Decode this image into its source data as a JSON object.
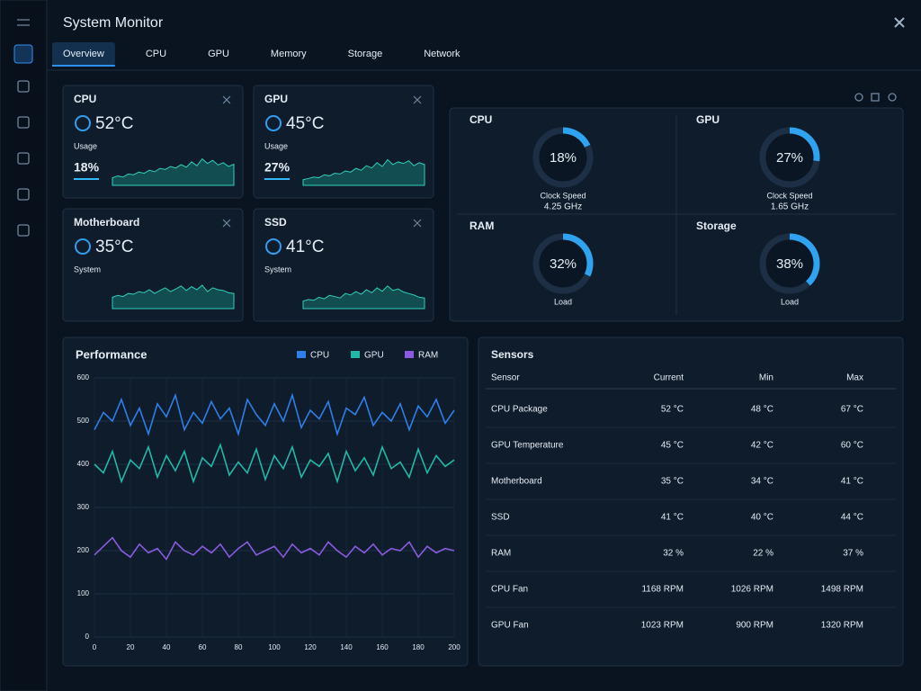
{
  "header": {
    "title": "System Monitor",
    "tabs": [
      "Overview",
      "CPU",
      "GPU",
      "Memory",
      "Storage",
      "Network"
    ],
    "active_tab": 0
  },
  "cards": [
    {
      "name": "CPU",
      "temperature": "52°C",
      "metric": "Usage",
      "reading": "18%",
      "history": [
        20,
        25,
        22,
        30,
        28,
        35,
        32,
        40,
        36,
        45,
        42,
        50,
        46,
        55,
        48,
        62,
        52,
        70,
        58,
        66,
        54,
        60,
        50,
        56
      ]
    },
    {
      "name": "GPU",
      "temperature": "45°C",
      "metric": "Usage",
      "reading": "27%",
      "history": [
        15,
        18,
        22,
        20,
        28,
        25,
        32,
        30,
        38,
        35,
        45,
        40,
        52,
        46,
        60,
        50,
        68,
        55,
        62,
        58,
        65,
        52,
        60,
        55
      ]
    },
    {
      "name": "Motherboard",
      "temperature": "35°C",
      "metric": "System",
      "history": [
        30,
        35,
        32,
        40,
        38,
        45,
        42,
        50,
        40,
        48,
        55,
        45,
        52,
        60,
        48,
        58,
        50,
        62,
        45,
        55,
        50,
        48,
        42,
        40
      ]
    },
    {
      "name": "SSD",
      "temperature": "41°C",
      "metric": "System",
      "history": [
        20,
        24,
        22,
        30,
        26,
        35,
        32,
        28,
        40,
        36,
        45,
        38,
        50,
        42,
        55,
        46,
        60,
        48,
        52,
        44,
        40,
        36,
        30,
        28
      ]
    }
  ],
  "gauges": [
    {
      "name": "CPU",
      "value": 18,
      "value_label": "18%",
      "caption": "Clock Speed",
      "detail": "4.25 GHz"
    },
    {
      "name": "GPU",
      "value": 27,
      "value_label": "27%",
      "caption": "Clock Speed",
      "detail": "1.65 GHz"
    },
    {
      "name": "RAM",
      "value": 32,
      "value_label": "32%",
      "caption": "Load"
    },
    {
      "name": "Storage",
      "value": 38,
      "value_label": "38%",
      "caption": "Load"
    }
  ],
  "chart_data": {
    "type": "line",
    "title": "Performance",
    "x": [
      0,
      5,
      10,
      15,
      20,
      25,
      30,
      35,
      40,
      45,
      50,
      55,
      60,
      65,
      70,
      75,
      80,
      85,
      90,
      95,
      100,
      105,
      110,
      115,
      120,
      125,
      130,
      135,
      140,
      145,
      150,
      155,
      160,
      165,
      170,
      175,
      180,
      185,
      190,
      195,
      200
    ],
    "series": [
      {
        "name": "CPU",
        "color": "#2f7fe8",
        "values": [
          480,
          520,
          500,
          550,
          490,
          530,
          470,
          540,
          510,
          560,
          480,
          520,
          495,
          545,
          505,
          530,
          470,
          550,
          515,
          490,
          540,
          500,
          560,
          485,
          525,
          505,
          545,
          470,
          530,
          515,
          555,
          490,
          520,
          500,
          540,
          480,
          535,
          510,
          550,
          495,
          525
        ]
      },
      {
        "name": "GPU",
        "color": "#22b8a8",
        "values": [
          400,
          380,
          430,
          360,
          410,
          390,
          440,
          370,
          420,
          385,
          430,
          360,
          415,
          395,
          445,
          375,
          405,
          380,
          435,
          365,
          420,
          390,
          440,
          370,
          410,
          395,
          425,
          360,
          430,
          385,
          415,
          375,
          440,
          390,
          405,
          370,
          435,
          380,
          420,
          395,
          410
        ]
      },
      {
        "name": "RAM",
        "color": "#8a5be0",
        "values": [
          190,
          210,
          230,
          200,
          185,
          215,
          195,
          205,
          180,
          220,
          200,
          190,
          210,
          195,
          215,
          185,
          205,
          220,
          190,
          200,
          210,
          185,
          215,
          195,
          205,
          190,
          220,
          200,
          185,
          210,
          195,
          215,
          190,
          205,
          200,
          220,
          185,
          210,
          195,
          205,
          200
        ]
      }
    ],
    "xlim": [
      0,
      200
    ],
    "xticks": [
      0,
      20,
      40,
      60,
      80,
      100,
      120,
      140,
      160,
      180,
      200
    ],
    "ylim": [
      0,
      600
    ],
    "yticks": [
      0,
      100,
      200,
      300,
      400,
      500,
      600
    ],
    "grid": true
  },
  "sensors": {
    "title": "Sensors",
    "columns": [
      "Sensor",
      "Current",
      "Min",
      "Max"
    ],
    "rows": [
      [
        "CPU Package",
        "52 °C",
        "48 °C",
        "67 °C"
      ],
      [
        "GPU Temperature",
        "45 °C",
        "42 °C",
        "60 °C"
      ],
      [
        "Motherboard",
        "35 °C",
        "34 °C",
        "41 °C"
      ],
      [
        "SSD",
        "41 °C",
        "40 °C",
        "44 °C"
      ],
      [
        "RAM",
        "32 %",
        "22 %",
        "37 %"
      ],
      [
        "CPU Fan",
        "1168 RPM",
        "1026 RPM",
        "1498 RPM"
      ],
      [
        "GPU Fan",
        "1023 RPM",
        "900 RPM",
        "1320 RPM"
      ]
    ]
  }
}
